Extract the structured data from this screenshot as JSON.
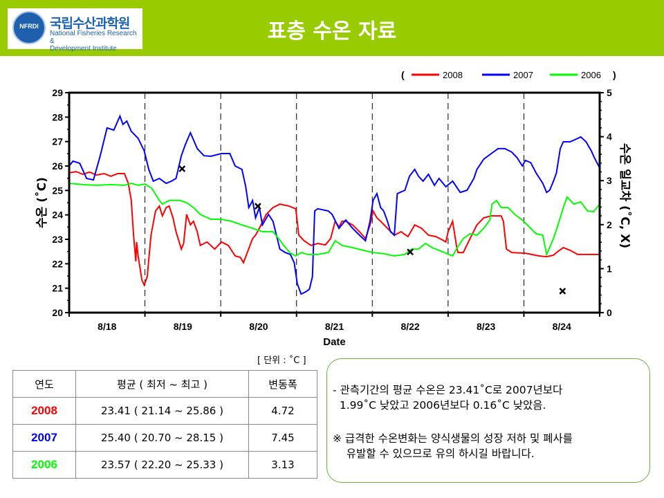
{
  "header": {
    "title": "표층 수온 자료",
    "logo_ko": "국립수산과학원",
    "logo_en": "National Fisheries Research &\nDevelopment Institute",
    "logo_mark": "NFRDI"
  },
  "colors": {
    "header": "#99cc00",
    "y2008": "#ff0000",
    "y2007": "#0000ff",
    "y2006": "#00ff00"
  },
  "chart_data": {
    "type": "line",
    "xlabel": "Date",
    "ylabel": "수온 (˚C)",
    "y2label": "수온 일교차 (˚C, X)",
    "xticks": [
      "8/18",
      "8/19",
      "8/20",
      "8/21",
      "8/22",
      "8/23",
      "8/24"
    ],
    "xlim": [
      0,
      7
    ],
    "ylim": [
      20,
      29
    ],
    "y2lim": [
      0,
      5
    ],
    "yticks": [
      20,
      21,
      22,
      23,
      24,
      25,
      26,
      27,
      28,
      29
    ],
    "y2ticks": [
      0,
      1,
      2,
      3,
      4,
      5
    ],
    "legend": {
      "open": "(",
      "close": ")",
      "placement": "top-right"
    },
    "series": [
      {
        "name": "2008",
        "color": "#ff0000",
        "x": [
          0,
          0.09,
          0.18,
          0.27,
          0.36,
          0.46,
          0.55,
          0.64,
          0.73,
          0.78,
          0.82,
          0.85,
          0.88,
          0.89,
          0.91,
          0.96,
          0.99,
          1.03,
          1.08,
          1.14,
          1.19,
          1.23,
          1.28,
          1.32,
          1.37,
          1.41,
          1.48,
          1.51,
          1.55,
          1.6,
          1.64,
          1.69,
          1.73,
          1.82,
          1.92,
          2.01,
          2.1,
          2.19,
          2.26,
          2.3,
          2.35,
          2.42,
          2.46,
          2.51,
          2.6,
          2.69,
          2.78,
          2.9,
          2.99,
          3.03,
          3.1,
          3.19,
          3.28,
          3.38,
          3.45,
          3.51,
          3.56,
          3.6,
          3.65,
          3.74,
          3.83,
          3.91,
          3.97,
          4.01,
          4.06,
          4.11,
          4.2,
          4.29,
          4.38,
          4.47,
          4.56,
          4.65,
          4.74,
          4.84,
          4.93,
          4.97,
          5.0,
          5.04,
          5.06,
          5.11,
          5.13,
          5.2,
          5.29,
          5.38,
          5.47,
          5.57,
          5.7,
          5.73,
          5.77,
          5.84,
          6.02,
          6.2,
          6.3,
          6.39,
          6.43,
          6.52,
          6.61,
          6.71,
          7.0
        ],
        "y": [
          25.72,
          25.77,
          25.66,
          25.75,
          25.63,
          25.69,
          25.58,
          25.69,
          25.69,
          25.29,
          24.59,
          23.17,
          22.1,
          22.89,
          22.32,
          21.33,
          21.13,
          21.47,
          23.17,
          24.16,
          24.36,
          23.96,
          24.3,
          24.36,
          23.88,
          23.31,
          22.6,
          22.83,
          24.02,
          23.59,
          23.74,
          23.31,
          22.75,
          22.89,
          22.6,
          22.89,
          22.75,
          22.32,
          22.26,
          22.04,
          22.46,
          23.03,
          23.17,
          23.45,
          24.02,
          24.3,
          24.44,
          24.36,
          24.25,
          23.17,
          22.94,
          22.75,
          22.83,
          22.77,
          23.03,
          23.74,
          23.51,
          23.74,
          23.74,
          23.59,
          23.31,
          23.03,
          23.59,
          24.16,
          23.88,
          23.74,
          23.45,
          23.17,
          23.31,
          23.11,
          23.59,
          23.45,
          23.17,
          23.11,
          22.97,
          22.89,
          23.31,
          23.59,
          23.74,
          22.75,
          22.46,
          22.46,
          23.03,
          23.59,
          23.88,
          23.96,
          23.96,
          23.74,
          22.6,
          22.46,
          22.43,
          22.32,
          22.29,
          22.35,
          22.46,
          22.66,
          22.55,
          22.38,
          22.38
        ]
      },
      {
        "name": "2007",
        "color": "#0000ff",
        "x": [
          0,
          0.05,
          0.14,
          0.23,
          0.32,
          0.41,
          0.5,
          0.59,
          0.67,
          0.71,
          0.76,
          0.82,
          0.91,
          0.99,
          1.05,
          1.11,
          1.19,
          1.28,
          1.35,
          1.41,
          1.48,
          1.53,
          1.6,
          1.69,
          1.78,
          1.87,
          2.01,
          2.12,
          2.19,
          2.28,
          2.33,
          2.37,
          2.42,
          2.46,
          2.51,
          2.55,
          2.63,
          2.69,
          2.78,
          2.85,
          2.92,
          2.97,
          3.01,
          3.06,
          3.12,
          3.17,
          3.21,
          3.24,
          3.28,
          3.42,
          3.47,
          3.56,
          3.65,
          3.74,
          3.83,
          3.91,
          3.97,
          4.01,
          4.06,
          4.11,
          4.15,
          4.2,
          4.24,
          4.29,
          4.33,
          4.43,
          4.49,
          4.56,
          4.61,
          4.67,
          4.74,
          4.82,
          4.88,
          4.97,
          5.06,
          5.16,
          5.25,
          5.34,
          5.38,
          5.47,
          5.57,
          5.66,
          5.75,
          5.84,
          5.91,
          5.98,
          6.02,
          6.09,
          6.16,
          6.25,
          6.3,
          6.34,
          6.39,
          6.43,
          6.48,
          6.52,
          6.61,
          6.71,
          6.75,
          6.82,
          6.89,
          6.93,
          7.0
        ],
        "y": [
          26.0,
          26.2,
          26.11,
          25.49,
          25.43,
          26.42,
          27.56,
          27.47,
          28.04,
          27.7,
          27.84,
          27.42,
          27.13,
          26.62,
          25.86,
          25.38,
          25.49,
          25.29,
          25.38,
          25.49,
          26.42,
          26.85,
          27.36,
          26.71,
          26.42,
          26.4,
          26.51,
          26.51,
          26.0,
          25.86,
          25.15,
          24.3,
          24.59,
          23.88,
          24.3,
          23.59,
          24.02,
          23.74,
          22.6,
          22.46,
          22.38,
          22.04,
          21.19,
          20.76,
          20.85,
          20.96,
          21.47,
          24.16,
          24.25,
          24.16,
          24.02,
          23.45,
          23.79,
          23.45,
          23.17,
          22.94,
          23.74,
          24.59,
          24.87,
          24.3,
          24.16,
          23.74,
          23.31,
          23.17,
          24.87,
          25.01,
          25.58,
          25.86,
          25.58,
          25.38,
          25.66,
          25.21,
          25.49,
          25.15,
          25.38,
          24.92,
          25.01,
          25.49,
          25.86,
          26.28,
          26.51,
          26.71,
          26.71,
          26.57,
          26.34,
          26.0,
          26.23,
          26.14,
          25.72,
          25.29,
          24.92,
          25.01,
          25.38,
          25.72,
          26.71,
          26.99,
          26.99,
          27.13,
          27.19,
          26.99,
          26.62,
          26.34,
          25.92
        ]
      },
      {
        "name": "2006",
        "color": "#00ff00",
        "x": [
          0,
          0.18,
          0.36,
          0.55,
          0.73,
          0.82,
          0.91,
          1.0,
          1.09,
          1.19,
          1.23,
          1.32,
          1.46,
          1.55,
          1.64,
          1.73,
          1.87,
          2.01,
          2.14,
          2.28,
          2.42,
          2.55,
          2.69,
          2.78,
          2.83,
          2.92,
          2.99,
          3.06,
          3.15,
          3.28,
          3.42,
          3.51,
          3.6,
          3.74,
          3.88,
          4.01,
          4.15,
          4.29,
          4.43,
          4.52,
          4.61,
          4.7,
          4.79,
          4.88,
          4.97,
          5.06,
          5.11,
          5.2,
          5.29,
          5.38,
          5.47,
          5.55,
          5.58,
          5.64,
          5.7,
          5.79,
          5.88,
          5.98,
          6.07,
          6.16,
          6.25,
          6.3,
          6.39,
          6.48,
          6.52,
          6.57,
          6.66,
          6.75,
          6.84,
          6.92,
          7.0
        ],
        "y": [
          25.29,
          25.24,
          25.21,
          25.24,
          25.21,
          25.29,
          25.21,
          25.26,
          25.09,
          24.59,
          24.44,
          24.59,
          24.59,
          24.5,
          24.3,
          24.02,
          23.82,
          23.82,
          23.74,
          23.59,
          23.45,
          23.31,
          23.31,
          22.97,
          22.75,
          22.43,
          22.32,
          22.46,
          22.38,
          22.38,
          22.46,
          22.94,
          22.75,
          22.66,
          22.55,
          22.46,
          22.41,
          22.32,
          22.38,
          22.6,
          22.6,
          22.83,
          22.66,
          22.55,
          22.43,
          22.32,
          22.6,
          23.03,
          23.23,
          23.17,
          23.45,
          23.79,
          24.44,
          24.59,
          24.3,
          24.3,
          24.02,
          23.79,
          23.51,
          23.23,
          23.17,
          22.38,
          23.03,
          23.88,
          24.3,
          24.73,
          24.44,
          24.53,
          24.16,
          24.13,
          24.44
        ]
      }
    ],
    "daily_range_marks": {
      "axis": "right",
      "x": [
        1.49,
        2.49,
        4.5,
        6.51
      ],
      "y": [
        3.27,
        2.42,
        1.38,
        0.49
      ]
    }
  },
  "table": {
    "unit": "[ 단위 : ˚C ]",
    "headers": [
      "연도",
      "평균 ( 최저 ~ 최고 )",
      "변동폭"
    ],
    "rows": [
      {
        "year": "2008",
        "stats": "23.41 ( 21.14 ~ 25.86 )",
        "range": "4.72"
      },
      {
        "year": "2007",
        "stats": "25.40 ( 20.70 ~ 28.15 )",
        "range": "7.45"
      },
      {
        "year": "2006",
        "stats": "23.57 ( 22.20 ~ 25.33 )",
        "range": "3.13"
      }
    ]
  },
  "note": {
    "line1": "- 관측기간의 평균 수온은 23.41˚C로 2007년보다\n  1.99˚C 낮았고 2006년보다 0.16˚C 낮았음.",
    "line2": "※ 급격한 수온변화는 양식생물의 성장 저하 및 폐사를\n    유발할 수 있으므로 유의 하시길 바랍니다."
  }
}
